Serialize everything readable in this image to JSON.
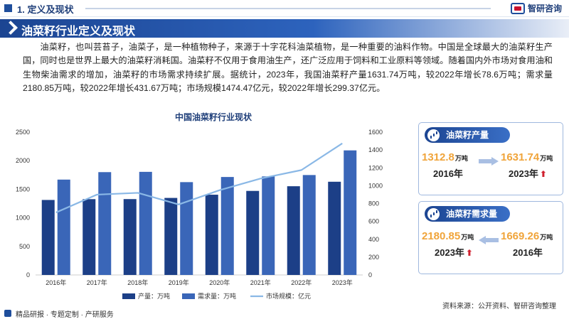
{
  "header": {
    "section": "1. 定义及现状",
    "brand": "智研咨询"
  },
  "banner": {
    "title": "油菜籽行业定义及现状"
  },
  "intro": "油菜籽，也叫芸苔子，油菜子，是一种植物种子，来源于十字花科油菜植物，是一种重要的油料作物。中国是全球最大的油菜籽生产国，同时也是世界上最大的油菜籽消耗国。油菜籽不仅用于食用油生产，还广泛应用于饲料和工业原料等领域。随着国内外市场对食用油和生物柴油需求的增加，油菜籽的市场需求持续扩展。据统计，2023年，我国油菜籽产量1631.74万吨，较2022年增长78.6万吨；需求量2180.85万吨，较2022年增长431.67万吨；市场规模1474.47亿元，较2022年增长299.37亿元。",
  "chart_data": {
    "type": "bar",
    "title": "中国油菜籽行业现状",
    "categories": [
      "2016年",
      "2017年",
      "2018年",
      "2019年",
      "2020年",
      "2021年",
      "2022年",
      "2023年"
    ],
    "series": [
      {
        "name": "产量：万吨",
        "type": "bar",
        "axis": "left",
        "color": "#1c3f87",
        "values": [
          1312.8,
          1327.4,
          1328.1,
          1348.5,
          1404.9,
          1471.3,
          1553.14,
          1631.74
        ]
      },
      {
        "name": "需求量：万吨",
        "type": "bar",
        "axis": "left",
        "color": "#3a66b8",
        "values": [
          1669.26,
          1800,
          1805,
          1625,
          1715,
          1725,
          1749.18,
          2180.85
        ]
      },
      {
        "name": "市场规模：亿元",
        "type": "line",
        "axis": "right",
        "color": "#8ab8e6",
        "values": [
          700,
          900,
          920,
          790,
          950,
          1080,
          1175.1,
          1474.47
        ]
      }
    ],
    "y_left": {
      "min": 0,
      "max": 2500,
      "ticks": [
        0,
        500,
        1000,
        1500,
        2000,
        2500
      ]
    },
    "y_right": {
      "min": 0,
      "max": 1600,
      "ticks": [
        0,
        200,
        400,
        600,
        800,
        1000,
        1200,
        1400,
        1600
      ]
    },
    "grid": false,
    "legend": "bottom"
  },
  "cards": [
    {
      "title": "油菜籽产量",
      "left_value": "1312.8",
      "left_unit": "万吨",
      "left_year": "2016年",
      "right_value": "1631.74",
      "right_unit": "万吨",
      "right_year": "2023年",
      "up_mark": "⬆"
    },
    {
      "title": "油菜籽需求量",
      "left_value": "2180.85",
      "left_unit": "万吨",
      "left_year": "2023年",
      "right_value": "1669.26",
      "right_unit": "万吨",
      "right_year": "2016年",
      "up_mark": "⬆"
    }
  ],
  "footer": {
    "slogan": "精品研报 · 专题定制 · 产研服务",
    "source": "资料来源：公开资料、智研咨询整理"
  },
  "colors": {
    "primary": "#1c4592",
    "accent": "#f0a43a",
    "up": "#d0202e"
  }
}
